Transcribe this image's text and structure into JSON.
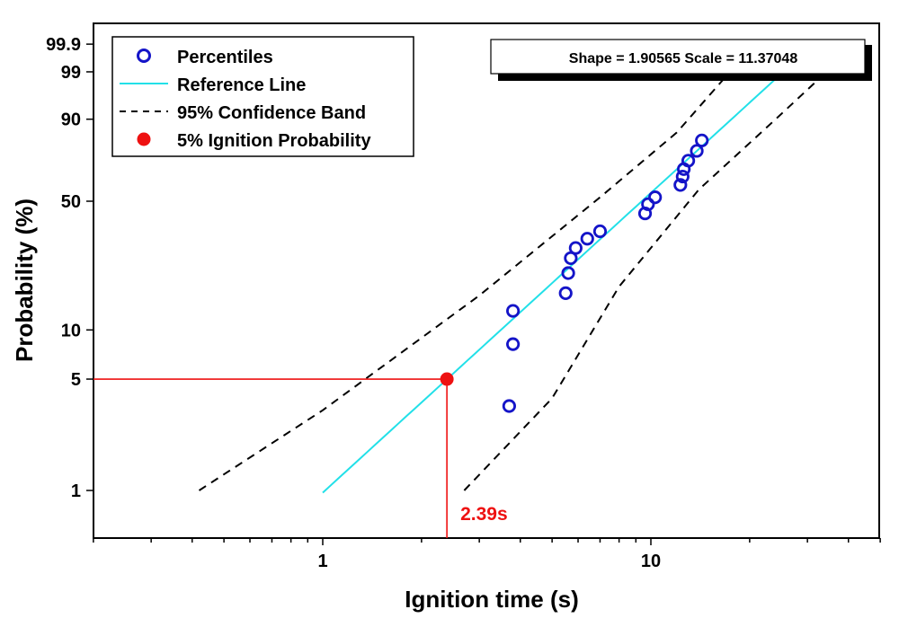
{
  "chart_data": {
    "type": "scatter",
    "title": "",
    "xlabel": "Ignition time (s)",
    "ylabel": "Probability (%)",
    "x_scale": "log",
    "y_scale": "weibull-probability",
    "xlim": [
      0.2,
      50
    ],
    "ylim": [
      0.5,
      99.9
    ],
    "x_ticks": [
      {
        "value": 1,
        "label": "1"
      },
      {
        "value": 10,
        "label": "10"
      }
    ],
    "y_ticks": [
      {
        "value": 1,
        "label": "1"
      },
      {
        "value": 5,
        "label": "5"
      },
      {
        "value": 10,
        "label": "10"
      },
      {
        "value": 50,
        "label": "50"
      },
      {
        "value": 90,
        "label": "90"
      },
      {
        "value": 99,
        "label": "99"
      },
      {
        "value": 99.9,
        "label": "99.9"
      }
    ],
    "grid": false,
    "legend_position": "top-left",
    "legend": [
      {
        "label": "Percentiles",
        "marker": "open-circle",
        "color": "#1414C8"
      },
      {
        "label": "Reference Line",
        "marker": "line",
        "color": "#22E0E8"
      },
      {
        "label": "95% Confidence Band",
        "marker": "dashed-line",
        "color": "#000000"
      },
      {
        "label": "5% Ignition Probability",
        "marker": "filled-circle",
        "color": "#EE1111"
      }
    ],
    "parameters_label": "Shape = 1.90565  Scale = 11.37048",
    "percentiles": [
      {
        "x": 3.7,
        "y": 3.4
      },
      {
        "x": 3.8,
        "y": 8.2
      },
      {
        "x": 3.8,
        "y": 13.0
      },
      {
        "x": 5.5,
        "y": 16.5
      },
      {
        "x": 5.6,
        "y": 21.5
      },
      {
        "x": 5.7,
        "y": 26.0
      },
      {
        "x": 5.9,
        "y": 29.5
      },
      {
        "x": 6.4,
        "y": 33.0
      },
      {
        "x": 7.0,
        "y": 36.0
      },
      {
        "x": 9.6,
        "y": 44.0
      },
      {
        "x": 9.8,
        "y": 48.5
      },
      {
        "x": 10.3,
        "y": 52.0
      },
      {
        "x": 12.3,
        "y": 58.5
      },
      {
        "x": 12.5,
        "y": 63.0
      },
      {
        "x": 12.6,
        "y": 67.0
      },
      {
        "x": 13.0,
        "y": 71.5
      },
      {
        "x": 13.8,
        "y": 76.5
      },
      {
        "x": 14.3,
        "y": 81.5
      }
    ],
    "reference_line": {
      "shape": 1.90565,
      "scale": 11.37048,
      "x_range": [
        1.0,
        25.0
      ]
    },
    "confidence_band": {
      "upper": [
        {
          "x": 0.42,
          "y": 1.0
        },
        {
          "x": 1.0,
          "y": 3.2
        },
        {
          "x": 3.0,
          "y": 16.0
        },
        {
          "x": 7.0,
          "y": 52.0
        },
        {
          "x": 12.0,
          "y": 85.0
        },
        {
          "x": 17.0,
          "y": 98.7
        }
      ],
      "lower": [
        {
          "x": 2.7,
          "y": 1.0
        },
        {
          "x": 5.0,
          "y": 3.8
        },
        {
          "x": 8.0,
          "y": 18.0
        },
        {
          "x": 14.0,
          "y": 56.0
        },
        {
          "x": 24.0,
          "y": 90.0
        },
        {
          "x": 33.0,
          "y": 98.6
        }
      ]
    },
    "annotation": {
      "x": 2.39,
      "y": 5,
      "label": "2.39s",
      "color": "#EE1111"
    }
  }
}
